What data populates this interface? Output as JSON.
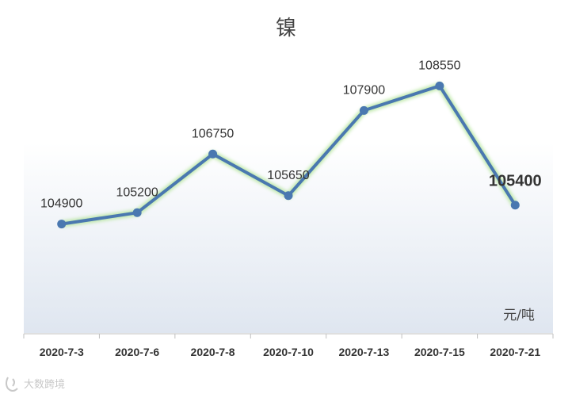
{
  "chart_data": {
    "type": "line",
    "title": "镍",
    "unit_label": "元/吨",
    "categories": [
      "2020-7-3",
      "2020-7-6",
      "2020-7-8",
      "2020-7-10",
      "2020-7-13",
      "2020-7-15",
      "2020-7-21"
    ],
    "series": [
      {
        "values": [
          104900,
          105200,
          106750,
          105650,
          107900,
          108550,
          105400
        ]
      }
    ],
    "data_labels": [
      "104900",
      "105200",
      "106750",
      "105650",
      "107900",
      "108550",
      "105400"
    ],
    "emphasized_label_index": 6,
    "ylim": [
      102000,
      109500
    ],
    "grid": false,
    "legend": "none",
    "colors": {
      "line": "#4a78b0",
      "marker": "#4a78b0",
      "glow": "#b8e6a0",
      "area_top": "#ffffff",
      "area_bottom": "#dfe6f0"
    }
  },
  "watermark": {
    "text": "大数跨境"
  }
}
